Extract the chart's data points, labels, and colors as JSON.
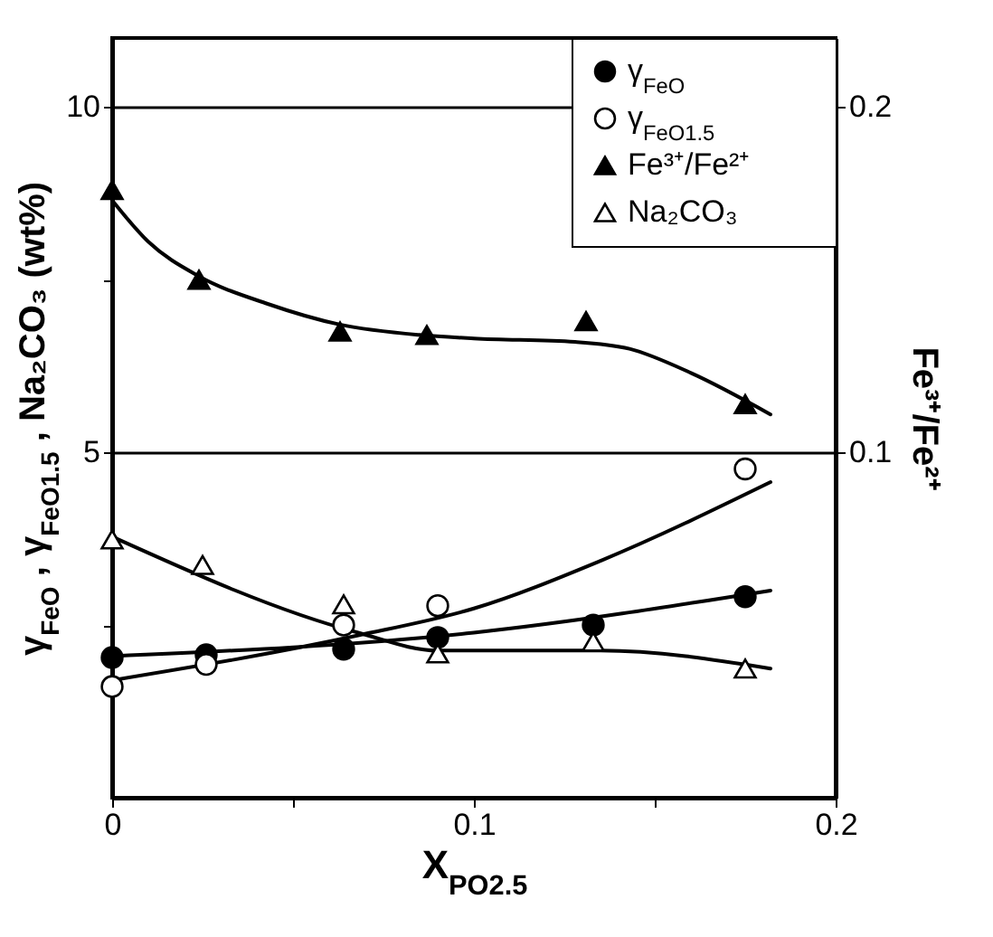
{
  "chart_data": {
    "type": "scatter",
    "xlabel": "X$_{PO2.5}$",
    "ylabel": "γ$_{FeO}$ , γ$_{FeO1.5}$ , Na₂CO₃ (wt%)",
    "y2label": "Fe³⁺/Fe²⁺",
    "xlim": [
      0,
      0.2
    ],
    "xticks": [
      0,
      {
        "value": 0.05,
        "label": null
      },
      0.1,
      {
        "value": 0.15,
        "label": null
      },
      0.2
    ],
    "ylim": [
      0,
      11
    ],
    "yticks": [
      {
        "value": 2.5,
        "label": null
      },
      5,
      {
        "value": 7.5,
        "label": null
      },
      10
    ],
    "y2lim": [
      0,
      0.22
    ],
    "y2ticks": [
      0.1,
      0.2
    ],
    "grid": "y",
    "legend": "top right",
    "series": [
      {
        "name": "γ$_{FeO}$",
        "marker": "circle",
        "color": "#000000",
        "x": [
          0,
          0.026,
          0.064,
          0.09,
          0.133,
          0.175
        ],
        "values": [
          2.03,
          2.07,
          2.15,
          2.32,
          2.5,
          2.91
        ]
      },
      {
        "name": "γ$_{FeO1.5}$",
        "marker": "circle",
        "color": "#ffffff",
        "x": [
          0,
          0.026,
          0.064,
          0.09,
          0.175
        ],
        "values": [
          1.61,
          1.93,
          2.5,
          2.78,
          4.76
        ]
      },
      {
        "name": "Fe³⁺/Fe²⁺",
        "axis": "y2",
        "marker": "triangle",
        "color": "#000000",
        "x": [
          0,
          0.024,
          0.063,
          0.087,
          0.131,
          0.175
        ],
        "values": [
          0.176,
          0.15,
          0.135,
          0.134,
          0.138,
          0.114
        ]
      },
      {
        "name": "Na₂CO₃",
        "marker": "triangle",
        "color": "#ffffff",
        "x": [
          0,
          0.025,
          0.064,
          0.09,
          0.133,
          0.175
        ],
        "values": [
          3.74,
          3.37,
          2.8,
          2.09,
          2.26,
          1.87
        ]
      },
      {
        "type": "line",
        "marker": "none",
        "line_style": "solid",
        "color": "#000000",
        "x": [
          0,
          0.1,
          0.182
        ],
        "values": [
          2.05,
          2.39,
          3.0
        ]
      },
      {
        "type": "line",
        "marker": "none",
        "line_style": "solid",
        "color": "#000000",
        "x": [
          0,
          0.068,
          0.1,
          0.135,
          0.182
        ],
        "values": [
          1.7,
          2.35,
          2.74,
          3.43,
          4.57
        ]
      },
      {
        "type": "line",
        "axis": "y2",
        "marker": "none",
        "line_style": "solid",
        "color": "#000000",
        "x": [
          0,
          0.01,
          0.024,
          0.043,
          0.063,
          0.085,
          0.1,
          0.128,
          0.143,
          0.16,
          0.182
        ],
        "values": [
          0.173,
          0.161,
          0.151,
          0.143,
          0.137,
          0.134,
          0.133,
          0.132,
          0.13,
          0.123,
          0.111
        ]
      },
      {
        "type": "line",
        "marker": "none",
        "line_style": "solid",
        "color": "#000000",
        "x": [
          0,
          0.068,
          0.09,
          0.135,
          0.182
        ],
        "values": [
          3.78,
          2.39,
          2.13,
          2.13,
          1.87
        ]
      }
    ]
  }
}
